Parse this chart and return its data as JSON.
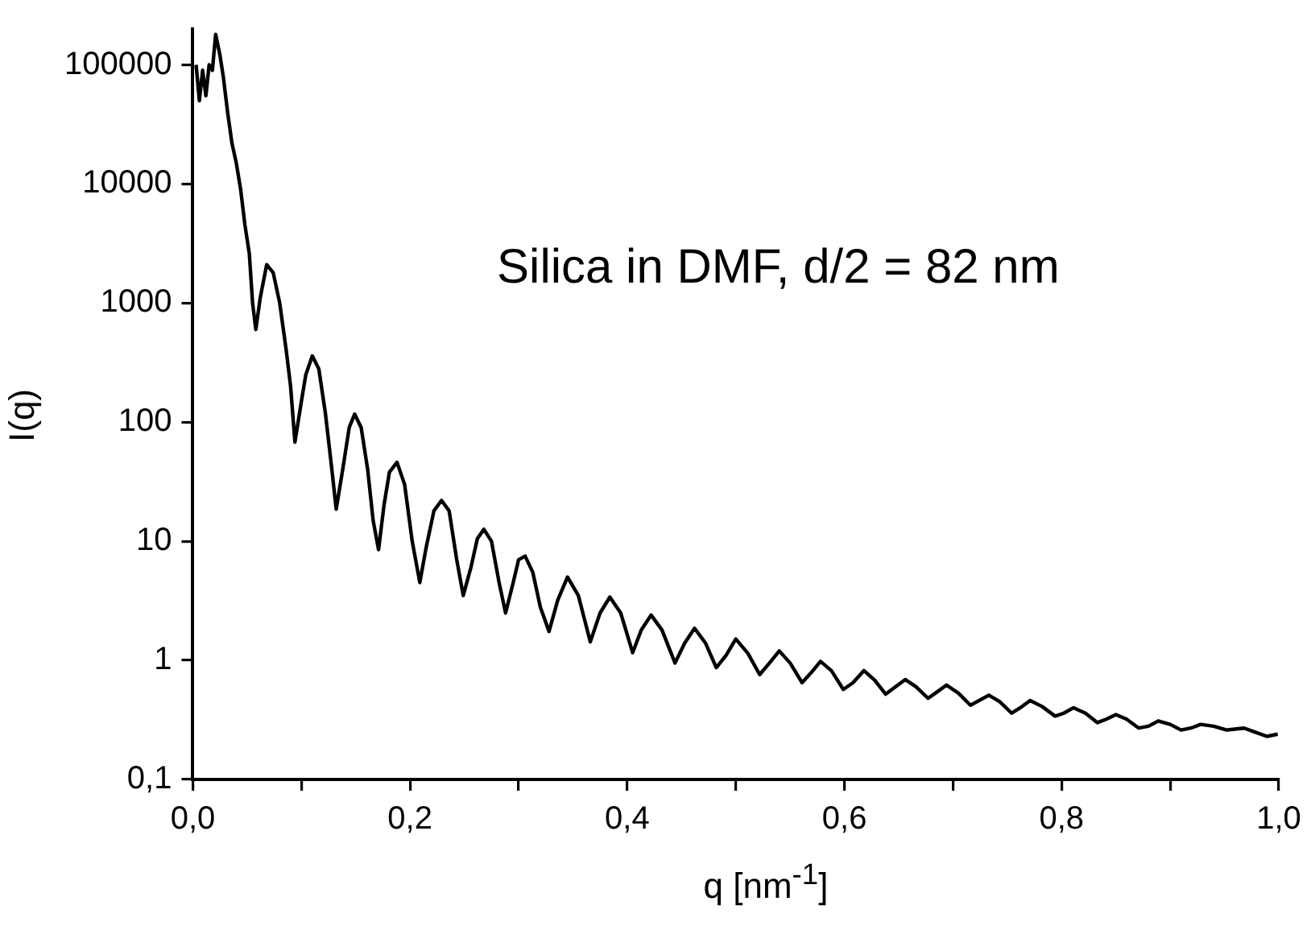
{
  "chart_data": {
    "type": "line",
    "xlabel": "q [nm$^{-1}$]",
    "ylabel": "I(q)",
    "annotations": [
      "Silica in DMF, d/2 = 82 nm"
    ],
    "x": [
      0.003,
      0.006,
      0.009,
      0.012,
      0.015,
      0.018,
      0.021,
      0.025,
      0.028,
      0.032,
      0.036,
      0.04,
      0.044,
      0.048,
      0.052,
      0.055,
      0.058,
      0.062,
      0.068,
      0.074,
      0.08,
      0.086,
      0.09,
      0.094,
      0.1,
      0.104,
      0.11,
      0.116,
      0.122,
      0.128,
      0.132,
      0.138,
      0.144,
      0.149,
      0.155,
      0.161,
      0.166,
      0.171,
      0.176,
      0.181,
      0.188,
      0.195,
      0.202,
      0.209,
      0.215,
      0.222,
      0.229,
      0.236,
      0.243,
      0.249,
      0.256,
      0.262,
      0.268,
      0.275,
      0.282,
      0.288,
      0.295,
      0.3,
      0.306,
      0.313,
      0.32,
      0.328,
      0.336,
      0.345,
      0.355,
      0.366,
      0.375,
      0.384,
      0.394,
      0.405,
      0.413,
      0.422,
      0.432,
      0.444,
      0.453,
      0.462,
      0.472,
      0.482,
      0.491,
      0.5,
      0.511,
      0.522,
      0.531,
      0.54,
      0.55,
      0.561,
      0.57,
      0.578,
      0.588,
      0.599,
      0.608,
      0.618,
      0.628,
      0.638,
      0.647,
      0.656,
      0.666,
      0.677,
      0.685,
      0.694,
      0.705,
      0.716,
      0.724,
      0.733,
      0.743,
      0.754,
      0.762,
      0.771,
      0.782,
      0.794,
      0.802,
      0.811,
      0.822,
      0.833,
      0.841,
      0.85,
      0.86,
      0.871,
      0.88,
      0.889,
      0.9,
      0.91,
      0.919,
      0.928,
      0.94,
      0.952,
      0.968,
      0.978,
      0.989,
      0.999
    ],
    "series": [
      {
        "color": "#000000",
        "values": [
          100000,
          50000,
          90000,
          55000,
          100000,
          90000,
          180000,
          120000,
          80000,
          40000,
          22000,
          15000,
          9000,
          4500,
          2600,
          1000,
          600,
          1100,
          2100,
          1800,
          1000,
          400,
          200,
          68,
          150,
          250,
          360,
          280,
          120,
          40,
          18.6,
          40,
          90,
          117,
          90,
          40,
          15,
          8.5,
          20,
          38,
          46,
          30,
          10,
          4.5,
          9,
          18,
          22,
          18,
          7,
          3.5,
          6,
          10.5,
          12.6,
          10,
          4.5,
          2.5,
          4.5,
          7,
          7.5,
          5.5,
          2.8,
          1.75,
          3.2,
          5,
          3.5,
          1.43,
          2.5,
          3.4,
          2.5,
          1.16,
          1.8,
          2.4,
          1.8,
          0.95,
          1.4,
          1.86,
          1.4,
          0.87,
          1.1,
          1.51,
          1.15,
          0.76,
          0.95,
          1.2,
          0.95,
          0.65,
          0.8,
          0.98,
          0.82,
          0.57,
          0.65,
          0.82,
          0.68,
          0.52,
          0.6,
          0.69,
          0.6,
          0.48,
          0.54,
          0.62,
          0.53,
          0.42,
          0.46,
          0.51,
          0.45,
          0.36,
          0.4,
          0.46,
          0.41,
          0.34,
          0.36,
          0.4,
          0.36,
          0.3,
          0.32,
          0.35,
          0.32,
          0.27,
          0.28,
          0.31,
          0.29,
          0.26,
          0.27,
          0.29,
          0.28,
          0.26,
          0.27,
          0.25,
          0.23,
          0.24
        ]
      }
    ],
    "xlim": [
      0,
      1
    ],
    "xticks": [
      {
        "value": 0,
        "label": "0,0"
      },
      {
        "value": 0.1,
        "label": null
      },
      {
        "value": 0.2,
        "label": "0,2"
      },
      {
        "value": 0.3,
        "label": null
      },
      {
        "value": 0.4,
        "label": "0,4"
      },
      {
        "value": 0.5,
        "label": null
      },
      {
        "value": 0.6,
        "label": "0,6"
      },
      {
        "value": 0.7,
        "label": null
      },
      {
        "value": 0.8,
        "label": "0,8"
      },
      {
        "value": 0.9,
        "label": null
      },
      {
        "value": 1,
        "label": "1,0"
      }
    ],
    "ylim": [
      0.1,
      200000
    ],
    "yticks": [
      {
        "value": 0.1,
        "label": "0,1"
      },
      1,
      10,
      100,
      1000,
      10000,
      100000
    ],
    "log": "y",
    "grid": false,
    "legend": false,
    "marker": "none",
    "line_style": "solid"
  }
}
